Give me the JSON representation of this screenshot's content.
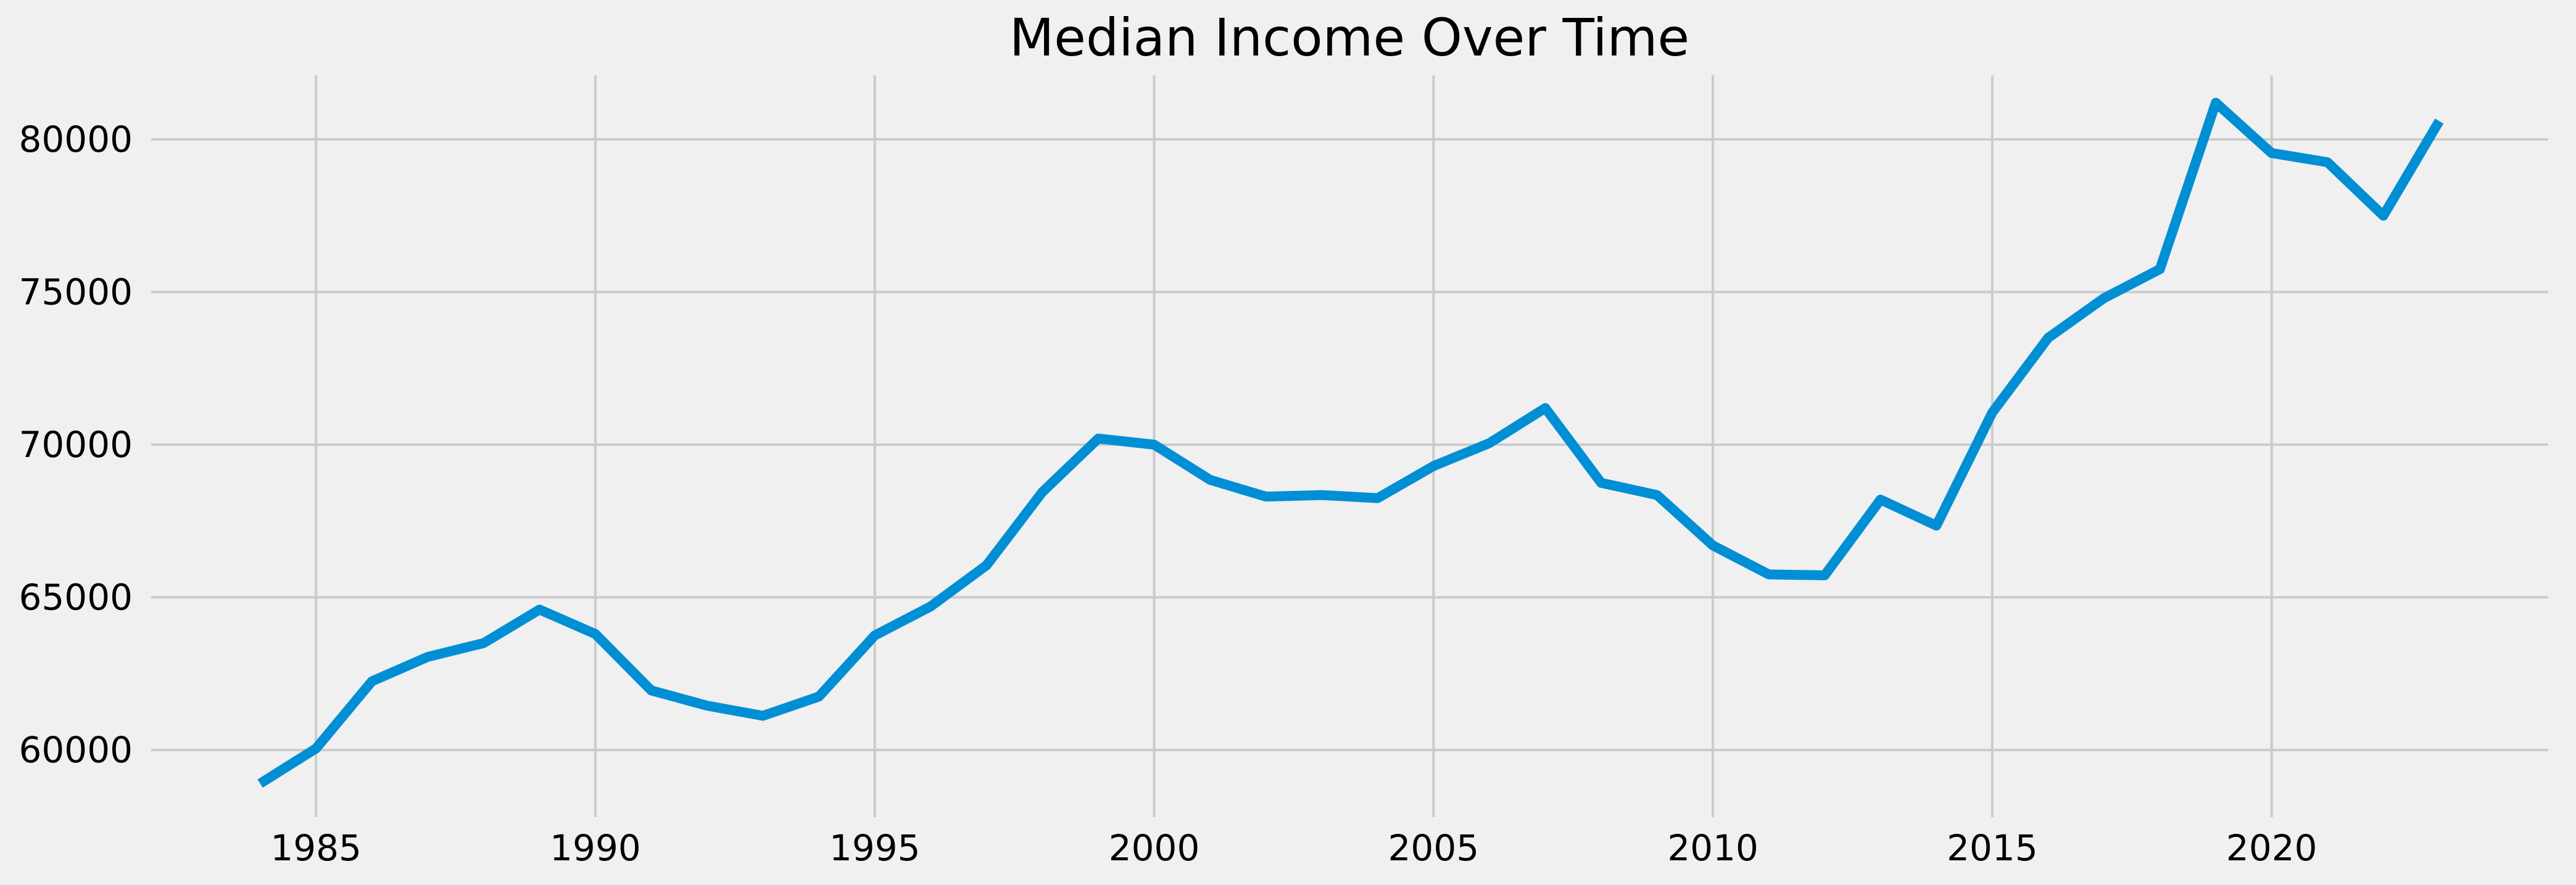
{
  "chart_data": {
    "type": "line",
    "title": "Median Income Over Time",
    "xlabel": "",
    "ylabel": "",
    "xlim": [
      1982.05,
      2024.95
    ],
    "ylim": [
      57800,
      82100
    ],
    "x_ticks": [
      1985,
      1990,
      1995,
      2000,
      2005,
      2010,
      2015,
      2020
    ],
    "y_ticks": [
      60000,
      65000,
      70000,
      75000,
      80000
    ],
    "grid": true,
    "legend": "none",
    "colors": {
      "series": "#008fd5",
      "grid": "#cbcbcb",
      "background": "#f0f0f0"
    },
    "series": [
      {
        "x": [
          1984,
          1985,
          1986,
          1987,
          1988,
          1989,
          1990,
          1991,
          1992,
          1993,
          1994,
          1995,
          1996,
          1997,
          1998,
          1999,
          2000,
          2001,
          2002,
          2003,
          2004,
          2005,
          2006,
          2007,
          2008,
          2009,
          2010,
          2011,
          2012,
          2013,
          2014,
          2015,
          2016,
          2017,
          2018,
          2019,
          2020,
          2021,
          2022,
          2023
        ],
        "values": [
          58900,
          60050,
          62250,
          63050,
          63500,
          64600,
          63800,
          61950,
          61450,
          61120,
          61750,
          63750,
          64700,
          66050,
          68450,
          70200,
          70000,
          68850,
          68300,
          68350,
          68250,
          69300,
          70050,
          71200,
          68750,
          68350,
          66700,
          65750,
          65720,
          68200,
          67350,
          71050,
          73500,
          74800,
          75750,
          81200,
          79550,
          79250,
          77500,
          80600
        ]
      }
    ]
  }
}
